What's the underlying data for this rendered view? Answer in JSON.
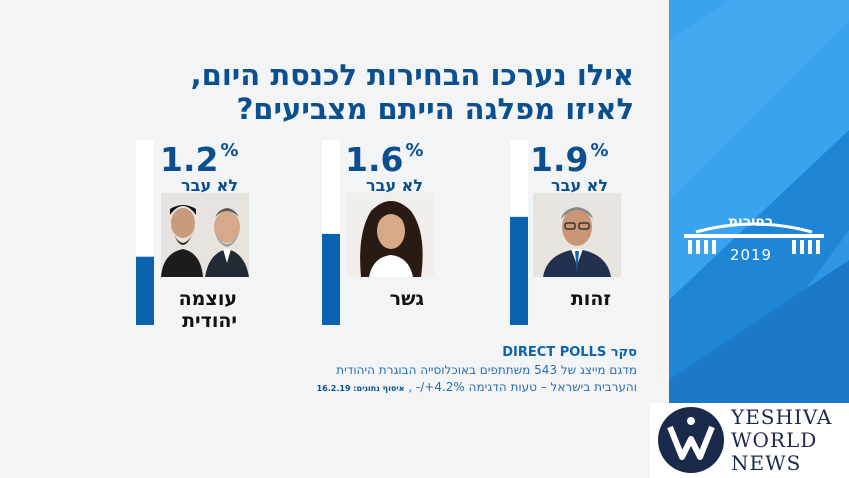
{
  "title_line1": "אילו נערכו הבחירות לכנסת היום,",
  "title_line2": "לאיזו מפלגה הייתם מצביעים?",
  "chart_data": {
    "type": "bar",
    "title": "אילו נערכו הבחירות לכנסת היום, לאיזו מפלגה הייתם מצביעים?",
    "categories": [
      "זהות",
      "גשר",
      "עוצמה יהודית"
    ],
    "values": [
      1.9,
      1.6,
      1.2
    ],
    "unit": "%",
    "status_label": "לא עבר",
    "ylim": [
      0,
      3.25
    ]
  },
  "party_lines": [
    [
      "זהות"
    ],
    [
      "גשר"
    ],
    [
      "עוצמה",
      "יהודית"
    ]
  ],
  "source": {
    "label_word": "סקר",
    "label_brand": "DIRECT POLLS",
    "line1": "מדגם מייצג של 543 משתתפים באוכלוסייה הבוגרת היהודית",
    "line2": "והערבית בישראל – טעות הדגימה 4.2%+/- ,",
    "line3": "איסוף נתונים: 16.2.19"
  },
  "logo": {
    "text": "בחירות",
    "year": "2019"
  },
  "watermark": {
    "line1": "YESHIVA",
    "line2": "WORLD",
    "line3": "NEWS"
  },
  "colors": {
    "brand_blue": "#0b63b0",
    "dark_blue": "#0b4f8f",
    "panel_blue": "#2a8fe0",
    "light_bar": "#ffffff"
  }
}
